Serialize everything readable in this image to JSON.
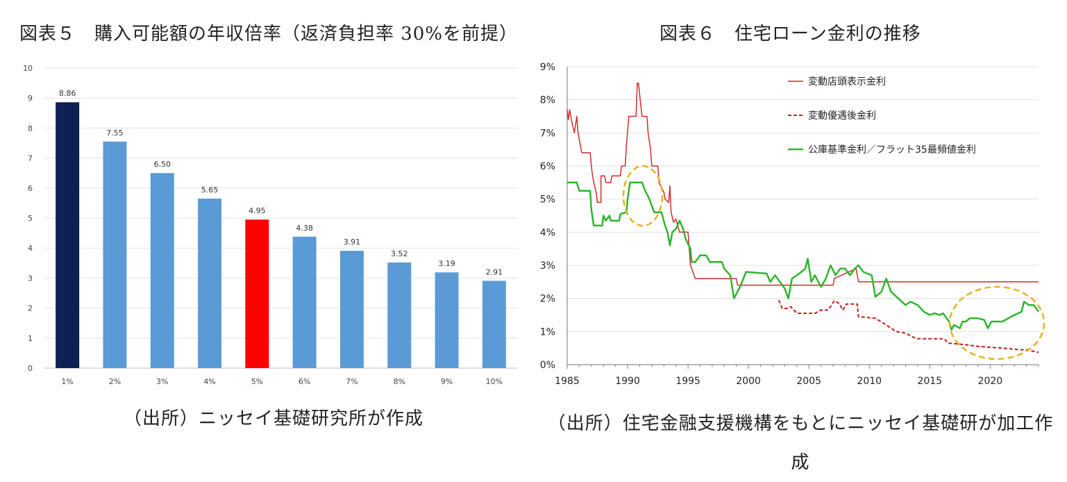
{
  "chart_data": [
    {
      "type": "bar",
      "title": "図表５　購入可能額の年収倍率（返済負担率 30%を前提）",
      "source": "（出所）ニッセイ基礎研究所が作成",
      "categories": [
        "1%",
        "2%",
        "3%",
        "4%",
        "5%",
        "6%",
        "7%",
        "8%",
        "9%",
        "10%"
      ],
      "values": [
        8.86,
        7.55,
        6.5,
        5.65,
        4.95,
        4.38,
        3.91,
        3.52,
        3.19,
        2.91
      ],
      "value_labels": [
        "8.86",
        "7.55",
        "6.50",
        "5.65",
        "4.95",
        "4.38",
        "3.91",
        "3.52",
        "3.19",
        "2.91"
      ],
      "bar_colors": [
        "#0d2155",
        "#5b9bd5",
        "#5b9bd5",
        "#5b9bd5",
        "#ff0000",
        "#5b9bd5",
        "#5b9bd5",
        "#5b9bd5",
        "#5b9bd5",
        "#5b9bd5"
      ],
      "ylim": [
        0,
        10
      ],
      "yticks": [
        "0",
        "1",
        "2",
        "3",
        "4",
        "5",
        "6",
        "7",
        "8",
        "9",
        "10"
      ],
      "grid": true
    },
    {
      "type": "line",
      "title": "図表６　住宅ローン金利の推移",
      "source": "（出所）住宅金融支援機構をもとにニッセイ基礎研が加工作成",
      "xlim": [
        1985,
        2024
      ],
      "ylim": [
        0,
        9
      ],
      "xticks": [
        "1985",
        "1990",
        "1995",
        "2000",
        "2005",
        "2010",
        "2015",
        "2020"
      ],
      "yticks": [
        "0%",
        "1%",
        "2%",
        "3%",
        "4%",
        "5%",
        "6%",
        "7%",
        "8%",
        "9%"
      ],
      "grid": true,
      "legend_position": "top-right",
      "series": [
        {
          "name": "変動店頭表示金利",
          "color": "#d42a2a",
          "style": "solid",
          "points": [
            [
              1985.0,
              7.7
            ],
            [
              1985.1,
              7.4
            ],
            [
              1985.2,
              7.7
            ],
            [
              1985.4,
              7.3
            ],
            [
              1985.6,
              7.0
            ],
            [
              1985.8,
              7.5
            ],
            [
              1985.9,
              7.0
            ],
            [
              1986.2,
              6.4
            ],
            [
              1986.9,
              6.4
            ],
            [
              1987.0,
              6.0
            ],
            [
              1987.1,
              5.7
            ],
            [
              1987.2,
              5.5
            ],
            [
              1987.4,
              5.2
            ],
            [
              1987.5,
              4.9
            ],
            [
              1987.8,
              4.9
            ],
            [
              1987.8,
              5.7
            ],
            [
              1988.1,
              5.7
            ],
            [
              1988.2,
              5.5
            ],
            [
              1988.6,
              5.5
            ],
            [
              1988.7,
              5.7
            ],
            [
              1989.4,
              5.7
            ],
            [
              1989.5,
              6.0
            ],
            [
              1989.8,
              6.0
            ],
            [
              1989.9,
              6.6
            ],
            [
              1990.1,
              7.5
            ],
            [
              1990.7,
              7.5
            ],
            [
              1990.8,
              8.5
            ],
            [
              1990.9,
              8.5
            ],
            [
              1991.1,
              7.8
            ],
            [
              1991.2,
              7.5
            ],
            [
              1991.6,
              7.5
            ],
            [
              1991.7,
              7.0
            ],
            [
              1991.9,
              6.5
            ],
            [
              1992.0,
              6.0
            ],
            [
              1992.5,
              6.0
            ],
            [
              1992.6,
              5.5
            ],
            [
              1993.0,
              5.2
            ],
            [
              1993.1,
              5.0
            ],
            [
              1993.4,
              4.9
            ],
            [
              1993.5,
              5.4
            ],
            [
              1993.6,
              4.6
            ],
            [
              1993.8,
              4.3
            ],
            [
              1994.0,
              4.4
            ],
            [
              1994.3,
              4.0
            ],
            [
              1994.5,
              4.0
            ],
            [
              1995.0,
              4.0
            ],
            [
              1995.2,
              3.0
            ],
            [
              1995.6,
              2.6
            ],
            [
              1999.0,
              2.6
            ],
            [
              1999.1,
              2.4
            ],
            [
              2007.0,
              2.4
            ],
            [
              2007.1,
              2.6
            ],
            [
              2008.9,
              2.9
            ],
            [
              2009.1,
              2.5
            ],
            [
              2024.0,
              2.5
            ]
          ]
        },
        {
          "name": "変動優遇後金利",
          "color": "#c61b1b",
          "style": "dashed",
          "points": [
            [
              2002.5,
              1.95
            ],
            [
              2002.8,
              1.7
            ],
            [
              2003.2,
              1.7
            ],
            [
              2003.5,
              1.75
            ],
            [
              2004.0,
              1.55
            ],
            [
              2005.5,
              1.55
            ],
            [
              2006.0,
              1.65
            ],
            [
              2006.6,
              1.65
            ],
            [
              2007.1,
              1.93
            ],
            [
              2007.5,
              1.85
            ],
            [
              2007.8,
              1.65
            ],
            [
              2008.1,
              1.83
            ],
            [
              2009.0,
              1.83
            ],
            [
              2009.1,
              1.45
            ],
            [
              2010.5,
              1.4
            ],
            [
              2011.4,
              1.2
            ],
            [
              2012.2,
              1.0
            ],
            [
              2013.0,
              0.95
            ],
            [
              2013.5,
              0.85
            ],
            [
              2014.0,
              0.78
            ],
            [
              2016.2,
              0.78
            ],
            [
              2016.5,
              0.65
            ],
            [
              2018.0,
              0.6
            ],
            [
              2019.0,
              0.55
            ],
            [
              2021.0,
              0.5
            ],
            [
              2022.5,
              0.45
            ],
            [
              2023.0,
              0.45
            ],
            [
              2024.0,
              0.37
            ]
          ]
        },
        {
          "name": "公庫基準金利／フラット35最頻値金利",
          "color": "#2db52d",
          "style": "solid",
          "points": [
            [
              1985.0,
              5.5
            ],
            [
              1985.8,
              5.5
            ],
            [
              1986.0,
              5.25
            ],
            [
              1986.9,
              5.25
            ],
            [
              1987.0,
              4.7
            ],
            [
              1987.2,
              4.2
            ],
            [
              1987.9,
              4.2
            ],
            [
              1988.0,
              4.5
            ],
            [
              1988.2,
              4.35
            ],
            [
              1988.5,
              4.5
            ],
            [
              1988.6,
              4.35
            ],
            [
              1989.3,
              4.35
            ],
            [
              1989.4,
              4.55
            ],
            [
              1989.9,
              4.6
            ],
            [
              1990.0,
              5.0
            ],
            [
              1990.2,
              5.5
            ],
            [
              1991.2,
              5.5
            ],
            [
              1991.4,
              5.3
            ],
            [
              1991.8,
              5.0
            ],
            [
              1992.2,
              4.6
            ],
            [
              1992.8,
              4.6
            ],
            [
              1993.1,
              4.2
            ],
            [
              1993.3,
              4.0
            ],
            [
              1993.5,
              3.6
            ],
            [
              1993.7,
              4.0
            ],
            [
              1994.0,
              4.1
            ],
            [
              1994.3,
              4.35
            ],
            [
              1994.6,
              4.1
            ],
            [
              1994.8,
              3.8
            ],
            [
              1995.2,
              3.5
            ],
            [
              1995.3,
              3.1
            ],
            [
              1995.6,
              3.1
            ],
            [
              1996.0,
              3.3
            ],
            [
              1996.5,
              3.3
            ],
            [
              1996.8,
              3.1
            ],
            [
              1997.8,
              3.1
            ],
            [
              1998.0,
              2.9
            ],
            [
              1998.5,
              2.7
            ],
            [
              1998.8,
              2.0
            ],
            [
              1999.3,
              2.35
            ],
            [
              1999.8,
              2.8
            ],
            [
              2001.5,
              2.75
            ],
            [
              2001.8,
              2.5
            ],
            [
              2002.2,
              2.7
            ],
            [
              2002.6,
              2.5
            ],
            [
              2003.0,
              2.3
            ],
            [
              2003.3,
              2.0
            ],
            [
              2003.6,
              2.6
            ],
            [
              2004.2,
              2.75
            ],
            [
              2004.7,
              2.9
            ],
            [
              2004.9,
              3.2
            ],
            [
              2005.2,
              2.5
            ],
            [
              2005.5,
              2.7
            ],
            [
              2006.0,
              2.35
            ],
            [
              2006.4,
              2.6
            ],
            [
              2006.8,
              3.0
            ],
            [
              2007.2,
              2.7
            ],
            [
              2007.6,
              2.9
            ],
            [
              2008.0,
              2.9
            ],
            [
              2008.4,
              2.7
            ],
            [
              2008.8,
              2.9
            ],
            [
              2009.1,
              3.0
            ],
            [
              2009.5,
              2.8
            ],
            [
              2010.2,
              2.7
            ],
            [
              2010.5,
              2.05
            ],
            [
              2011.0,
              2.2
            ],
            [
              2011.4,
              2.6
            ],
            [
              2011.8,
              2.2
            ],
            [
              2012.4,
              2.0
            ],
            [
              2013.0,
              1.8
            ],
            [
              2013.4,
              1.9
            ],
            [
              2014.0,
              1.8
            ],
            [
              2014.5,
              1.6
            ],
            [
              2015.0,
              1.5
            ],
            [
              2015.4,
              1.55
            ],
            [
              2015.8,
              1.5
            ],
            [
              2016.1,
              1.55
            ],
            [
              2016.6,
              1.3
            ],
            [
              2016.8,
              1.05
            ],
            [
              2017.0,
              1.2
            ],
            [
              2017.5,
              1.1
            ],
            [
              2017.7,
              1.3
            ],
            [
              2018.0,
              1.3
            ],
            [
              2018.3,
              1.4
            ],
            [
              2019.0,
              1.4
            ],
            [
              2019.5,
              1.35
            ],
            [
              2019.8,
              1.1
            ],
            [
              2020.1,
              1.3
            ],
            [
              2021.0,
              1.3
            ],
            [
              2022.0,
              1.5
            ],
            [
              2022.6,
              1.6
            ],
            [
              2022.8,
              1.9
            ],
            [
              2023.2,
              1.8
            ],
            [
              2023.6,
              1.8
            ],
            [
              2024.0,
              1.6
            ]
          ]
        }
      ]
    }
  ]
}
